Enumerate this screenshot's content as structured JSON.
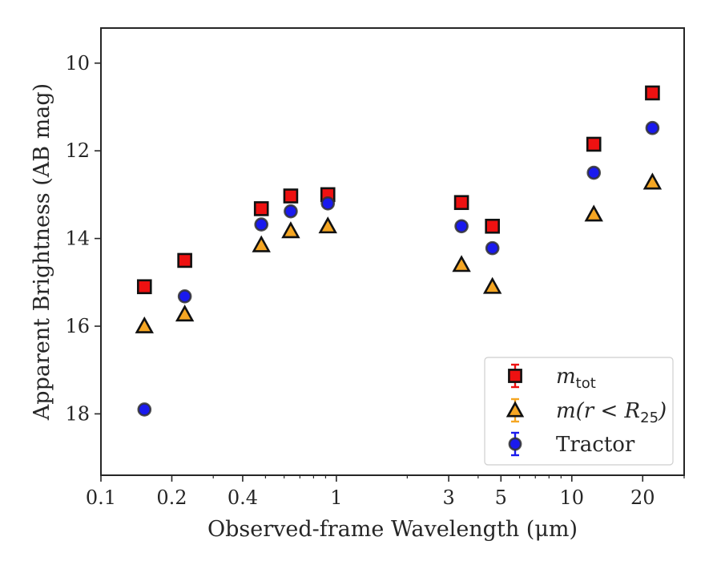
{
  "chart_data": {
    "type": "scatter",
    "xlabel": "Observed-frame Wavelength (μm)",
    "ylabel": "Apparent Brightness (AB mag)",
    "x_scale": "log",
    "y_inverted": true,
    "xlim": [
      0.1,
      30
    ],
    "ylim": [
      19.4,
      9.2
    ],
    "x_ticks": [
      0.1,
      0.2,
      0.4,
      1,
      3,
      5,
      10,
      20
    ],
    "x_tick_labels": [
      "0.1",
      "0.2",
      "0.4",
      "1",
      "3",
      "5",
      "10",
      "20"
    ],
    "y_ticks": [
      10,
      12,
      14,
      16,
      18
    ],
    "y_tick_labels": [
      "10",
      "12",
      "14",
      "16",
      "18"
    ],
    "grid": false,
    "legend_position": "lower-right",
    "series": [
      {
        "name": "m_tot",
        "label_main": "m",
        "label_sub": "tot",
        "marker": "square",
        "color": "#ee1111",
        "edge_color": "#111111",
        "points": [
          {
            "x": 0.153,
            "y": 15.1
          },
          {
            "x": 0.227,
            "y": 14.5
          },
          {
            "x": 0.48,
            "y": 13.32
          },
          {
            "x": 0.64,
            "y": 13.03
          },
          {
            "x": 0.92,
            "y": 13.0
          },
          {
            "x": 3.4,
            "y": 13.18
          },
          {
            "x": 4.6,
            "y": 13.72
          },
          {
            "x": 12.4,
            "y": 11.85
          },
          {
            "x": 22.0,
            "y": 10.68
          }
        ]
      },
      {
        "name": "m(r < R25)",
        "label_main": "m(r < R",
        "label_sub": "25",
        "label_end": ")",
        "marker": "triangle",
        "color": "#f5a623",
        "edge_color": "#111111",
        "points": [
          {
            "x": 0.153,
            "y": 16.0
          },
          {
            "x": 0.227,
            "y": 15.73
          },
          {
            "x": 0.48,
            "y": 14.15
          },
          {
            "x": 0.64,
            "y": 13.83
          },
          {
            "x": 0.92,
            "y": 13.72
          },
          {
            "x": 3.4,
            "y": 14.6
          },
          {
            "x": 4.6,
            "y": 15.1
          },
          {
            "x": 12.4,
            "y": 13.45
          },
          {
            "x": 22.0,
            "y": 12.72
          }
        ]
      },
      {
        "name": "Tractor",
        "label_main": "Tractor",
        "marker": "circle",
        "color": "#1a1aee",
        "edge_color": "#333333",
        "points": [
          {
            "x": 0.153,
            "y": 17.9
          },
          {
            "x": 0.227,
            "y": 15.32
          },
          {
            "x": 0.48,
            "y": 13.68
          },
          {
            "x": 0.64,
            "y": 13.38
          },
          {
            "x": 0.92,
            "y": 13.2
          },
          {
            "x": 3.4,
            "y": 13.72
          },
          {
            "x": 4.6,
            "y": 14.22
          },
          {
            "x": 12.4,
            "y": 12.5
          },
          {
            "x": 22.0,
            "y": 11.48
          }
        ]
      }
    ]
  }
}
